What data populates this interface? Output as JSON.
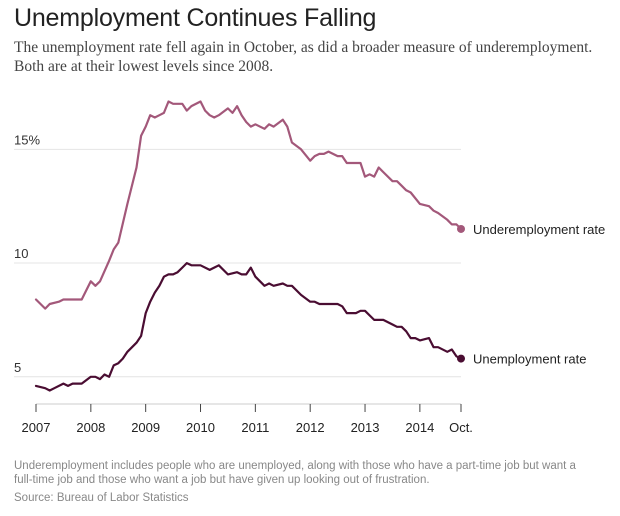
{
  "header": {
    "title": "Unemployment Continues Falling",
    "subtitle_lines": [
      "The unemployment rate fell again in October, as did a broader measure of underemployment.",
      "Both are at their lowest levels since 2008."
    ]
  },
  "footer": {
    "note_lines": [
      "Underemployment includes people who are unemployed, along with those who have a part-time job but want a",
      "full-time job and those who want a job but have given up looking out of frustration."
    ],
    "source": "Source: Bureau of Labor Statistics"
  },
  "chart_data": {
    "type": "line",
    "title": "Unemployment Continues Falling",
    "xlabel": "",
    "ylabel": "",
    "x_ticks": [
      {
        "x": 2007,
        "label": "2007"
      },
      {
        "x": 2008,
        "label": "2008"
      },
      {
        "x": 2009,
        "label": "2009"
      },
      {
        "x": 2010,
        "label": "2010"
      },
      {
        "x": 2011,
        "label": "2011"
      },
      {
        "x": 2012,
        "label": "2012"
      },
      {
        "x": 2013,
        "label": "2013"
      },
      {
        "x": 2014,
        "label": "2014"
      },
      {
        "x": 2014.75,
        "label": "Oct."
      }
    ],
    "y_ticks": [
      {
        "y": 5,
        "label": "5"
      },
      {
        "y": 10,
        "label": "10"
      },
      {
        "y": 15,
        "label": "15%"
      }
    ],
    "xlim": [
      2007,
      2014.75
    ],
    "ylim": [
      4.2,
      17.3
    ],
    "grid": true,
    "legend": "end-of-line labels",
    "series": [
      {
        "name": "Underemployment rate",
        "color": "#a3587a",
        "x": [
          2007.0,
          2007.167,
          2007.25,
          2007.417,
          2007.5,
          2007.667,
          2007.833,
          2008.0,
          2008.083,
          2008.167,
          2008.333,
          2008.417,
          2008.5,
          2008.667,
          2008.833,
          2008.917,
          2009.0,
          2009.083,
          2009.167,
          2009.25,
          2009.333,
          2009.417,
          2009.5,
          2009.667,
          2009.75,
          2009.833,
          2010.0,
          2010.083,
          2010.167,
          2010.25,
          2010.333,
          2010.5,
          2010.583,
          2010.667,
          2010.75,
          2010.833,
          2010.917,
          2011.0,
          2011.167,
          2011.25,
          2011.333,
          2011.5,
          2011.583,
          2011.667,
          2011.833,
          2012.0,
          2012.083,
          2012.167,
          2012.25,
          2012.333,
          2012.5,
          2012.583,
          2012.667,
          2012.75,
          2012.917,
          2013.0,
          2013.083,
          2013.167,
          2013.25,
          2013.333,
          2013.5,
          2013.583,
          2013.667,
          2013.75,
          2013.833,
          2014.0,
          2014.167,
          2014.25,
          2014.333,
          2014.5,
          2014.583,
          2014.667,
          2014.75
        ],
        "values": [
          8.4,
          8.0,
          8.2,
          8.3,
          8.4,
          8.4,
          8.4,
          9.2,
          9.0,
          9.2,
          10.1,
          10.6,
          10.9,
          12.6,
          14.2,
          15.6,
          16.0,
          16.5,
          16.4,
          16.5,
          16.6,
          17.1,
          17.0,
          17.0,
          16.7,
          16.9,
          17.1,
          16.7,
          16.5,
          16.4,
          16.5,
          16.8,
          16.6,
          16.9,
          16.5,
          16.2,
          16.0,
          16.1,
          15.9,
          16.1,
          16.0,
          16.3,
          16.0,
          15.3,
          15.0,
          14.5,
          14.7,
          14.8,
          14.8,
          14.9,
          14.7,
          14.7,
          14.4,
          14.4,
          14.4,
          13.8,
          13.9,
          13.8,
          14.2,
          14.0,
          13.6,
          13.6,
          13.4,
          13.2,
          13.1,
          12.6,
          12.5,
          12.3,
          12.2,
          11.9,
          11.7,
          11.7,
          11.5
        ]
      },
      {
        "name": "Unemployment rate",
        "color": "#4a0d32",
        "x": [
          2007.0,
          2007.167,
          2007.25,
          2007.333,
          2007.5,
          2007.583,
          2007.667,
          2007.833,
          2008.0,
          2008.083,
          2008.167,
          2008.25,
          2008.333,
          2008.417,
          2008.5,
          2008.583,
          2008.667,
          2008.833,
          2008.917,
          2009.0,
          2009.083,
          2009.167,
          2009.25,
          2009.333,
          2009.417,
          2009.5,
          2009.583,
          2009.667,
          2009.75,
          2009.833,
          2010.0,
          2010.167,
          2010.25,
          2010.333,
          2010.5,
          2010.667,
          2010.75,
          2010.833,
          2010.917,
          2011.0,
          2011.167,
          2011.25,
          2011.333,
          2011.5,
          2011.583,
          2011.667,
          2011.833,
          2012.0,
          2012.083,
          2012.167,
          2012.333,
          2012.5,
          2012.583,
          2012.667,
          2012.75,
          2012.833,
          2012.917,
          2013.0,
          2013.083,
          2013.167,
          2013.25,
          2013.333,
          2013.5,
          2013.583,
          2013.667,
          2013.75,
          2013.833,
          2013.917,
          2014.0,
          2014.167,
          2014.25,
          2014.333,
          2014.5,
          2014.583,
          2014.667,
          2014.75
        ],
        "values": [
          4.6,
          4.5,
          4.4,
          4.5,
          4.7,
          4.6,
          4.7,
          4.7,
          5.0,
          5.0,
          4.9,
          5.1,
          5.0,
          5.5,
          5.6,
          5.8,
          6.1,
          6.5,
          6.8,
          7.8,
          8.3,
          8.7,
          9.0,
          9.4,
          9.5,
          9.5,
          9.6,
          9.8,
          10.0,
          9.9,
          9.9,
          9.7,
          9.8,
          9.9,
          9.5,
          9.6,
          9.5,
          9.5,
          9.8,
          9.4,
          9.0,
          9.1,
          9.0,
          9.1,
          9.0,
          9.0,
          8.6,
          8.3,
          8.3,
          8.2,
          8.2,
          8.2,
          8.1,
          7.8,
          7.8,
          7.8,
          7.9,
          7.9,
          7.7,
          7.5,
          7.5,
          7.5,
          7.3,
          7.2,
          7.2,
          7.0,
          6.7,
          6.7,
          6.6,
          6.7,
          6.3,
          6.3,
          6.1,
          6.2,
          5.9,
          5.8
        ]
      }
    ]
  }
}
